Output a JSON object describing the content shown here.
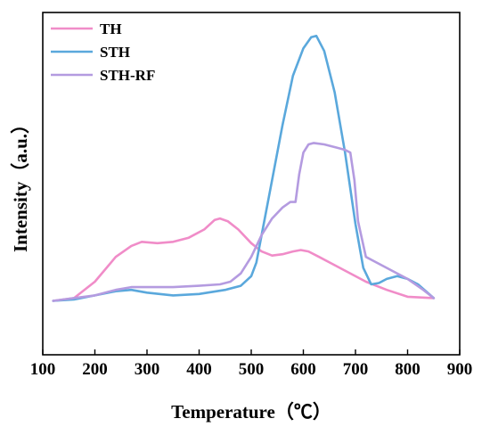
{
  "chart_data": {
    "type": "line",
    "title": "",
    "xlabel": "Temperature（℃）",
    "ylabel": "Intensity（a.u.）",
    "xlim": [
      100,
      900
    ],
    "ylim": [
      0,
      1
    ],
    "x_ticks": [
      "100",
      "200",
      "300",
      "400",
      "500",
      "600",
      "700",
      "800",
      "900"
    ],
    "y_ticks_shown": false,
    "grid": false,
    "legend_position": "top-left",
    "series": [
      {
        "name": "TH",
        "color": "#F08CC8",
        "points": [
          [
            120,
            0.06
          ],
          [
            160,
            0.07
          ],
          [
            200,
            0.13
          ],
          [
            240,
            0.22
          ],
          [
            270,
            0.26
          ],
          [
            290,
            0.275
          ],
          [
            320,
            0.27
          ],
          [
            350,
            0.275
          ],
          [
            380,
            0.29
          ],
          [
            410,
            0.32
          ],
          [
            430,
            0.355
          ],
          [
            440,
            0.36
          ],
          [
            455,
            0.35
          ],
          [
            475,
            0.32
          ],
          [
            500,
            0.27
          ],
          [
            520,
            0.24
          ],
          [
            540,
            0.225
          ],
          [
            560,
            0.23
          ],
          [
            580,
            0.24
          ],
          [
            595,
            0.245
          ],
          [
            610,
            0.24
          ],
          [
            630,
            0.22
          ],
          [
            650,
            0.2
          ],
          [
            680,
            0.17
          ],
          [
            720,
            0.13
          ],
          [
            760,
            0.1
          ],
          [
            800,
            0.075
          ],
          [
            850,
            0.07
          ]
        ]
      },
      {
        "name": "STH",
        "color": "#5AA8DC",
        "points": [
          [
            120,
            0.06
          ],
          [
            160,
            0.065
          ],
          [
            200,
            0.08
          ],
          [
            240,
            0.095
          ],
          [
            270,
            0.1
          ],
          [
            300,
            0.09
          ],
          [
            350,
            0.08
          ],
          [
            400,
            0.085
          ],
          [
            450,
            0.1
          ],
          [
            480,
            0.115
          ],
          [
            500,
            0.15
          ],
          [
            510,
            0.2
          ],
          [
            525,
            0.35
          ],
          [
            540,
            0.5
          ],
          [
            560,
            0.7
          ],
          [
            580,
            0.88
          ],
          [
            600,
            0.98
          ],
          [
            615,
            1.02
          ],
          [
            625,
            1.025
          ],
          [
            640,
            0.97
          ],
          [
            660,
            0.82
          ],
          [
            680,
            0.6
          ],
          [
            700,
            0.34
          ],
          [
            715,
            0.18
          ],
          [
            730,
            0.12
          ],
          [
            745,
            0.125
          ],
          [
            760,
            0.14
          ],
          [
            780,
            0.15
          ],
          [
            800,
            0.14
          ],
          [
            820,
            0.12
          ],
          [
            850,
            0.07
          ]
        ]
      },
      {
        "name": "STH-RF",
        "color": "#B49BE0",
        "points": [
          [
            120,
            0.06
          ],
          [
            160,
            0.07
          ],
          [
            200,
            0.08
          ],
          [
            240,
            0.1
          ],
          [
            270,
            0.11
          ],
          [
            300,
            0.11
          ],
          [
            350,
            0.11
          ],
          [
            400,
            0.115
          ],
          [
            440,
            0.12
          ],
          [
            460,
            0.13
          ],
          [
            480,
            0.16
          ],
          [
            500,
            0.22
          ],
          [
            520,
            0.3
          ],
          [
            540,
            0.36
          ],
          [
            560,
            0.4
          ],
          [
            575,
            0.42
          ],
          [
            585,
            0.42
          ],
          [
            592,
            0.52
          ],
          [
            600,
            0.6
          ],
          [
            610,
            0.63
          ],
          [
            620,
            0.635
          ],
          [
            640,
            0.63
          ],
          [
            660,
            0.62
          ],
          [
            680,
            0.61
          ],
          [
            690,
            0.6
          ],
          [
            698,
            0.5
          ],
          [
            705,
            0.35
          ],
          [
            720,
            0.22
          ],
          [
            740,
            0.2
          ],
          [
            770,
            0.17
          ],
          [
            800,
            0.14
          ],
          [
            830,
            0.1
          ],
          [
            850,
            0.07
          ]
        ]
      }
    ]
  }
}
